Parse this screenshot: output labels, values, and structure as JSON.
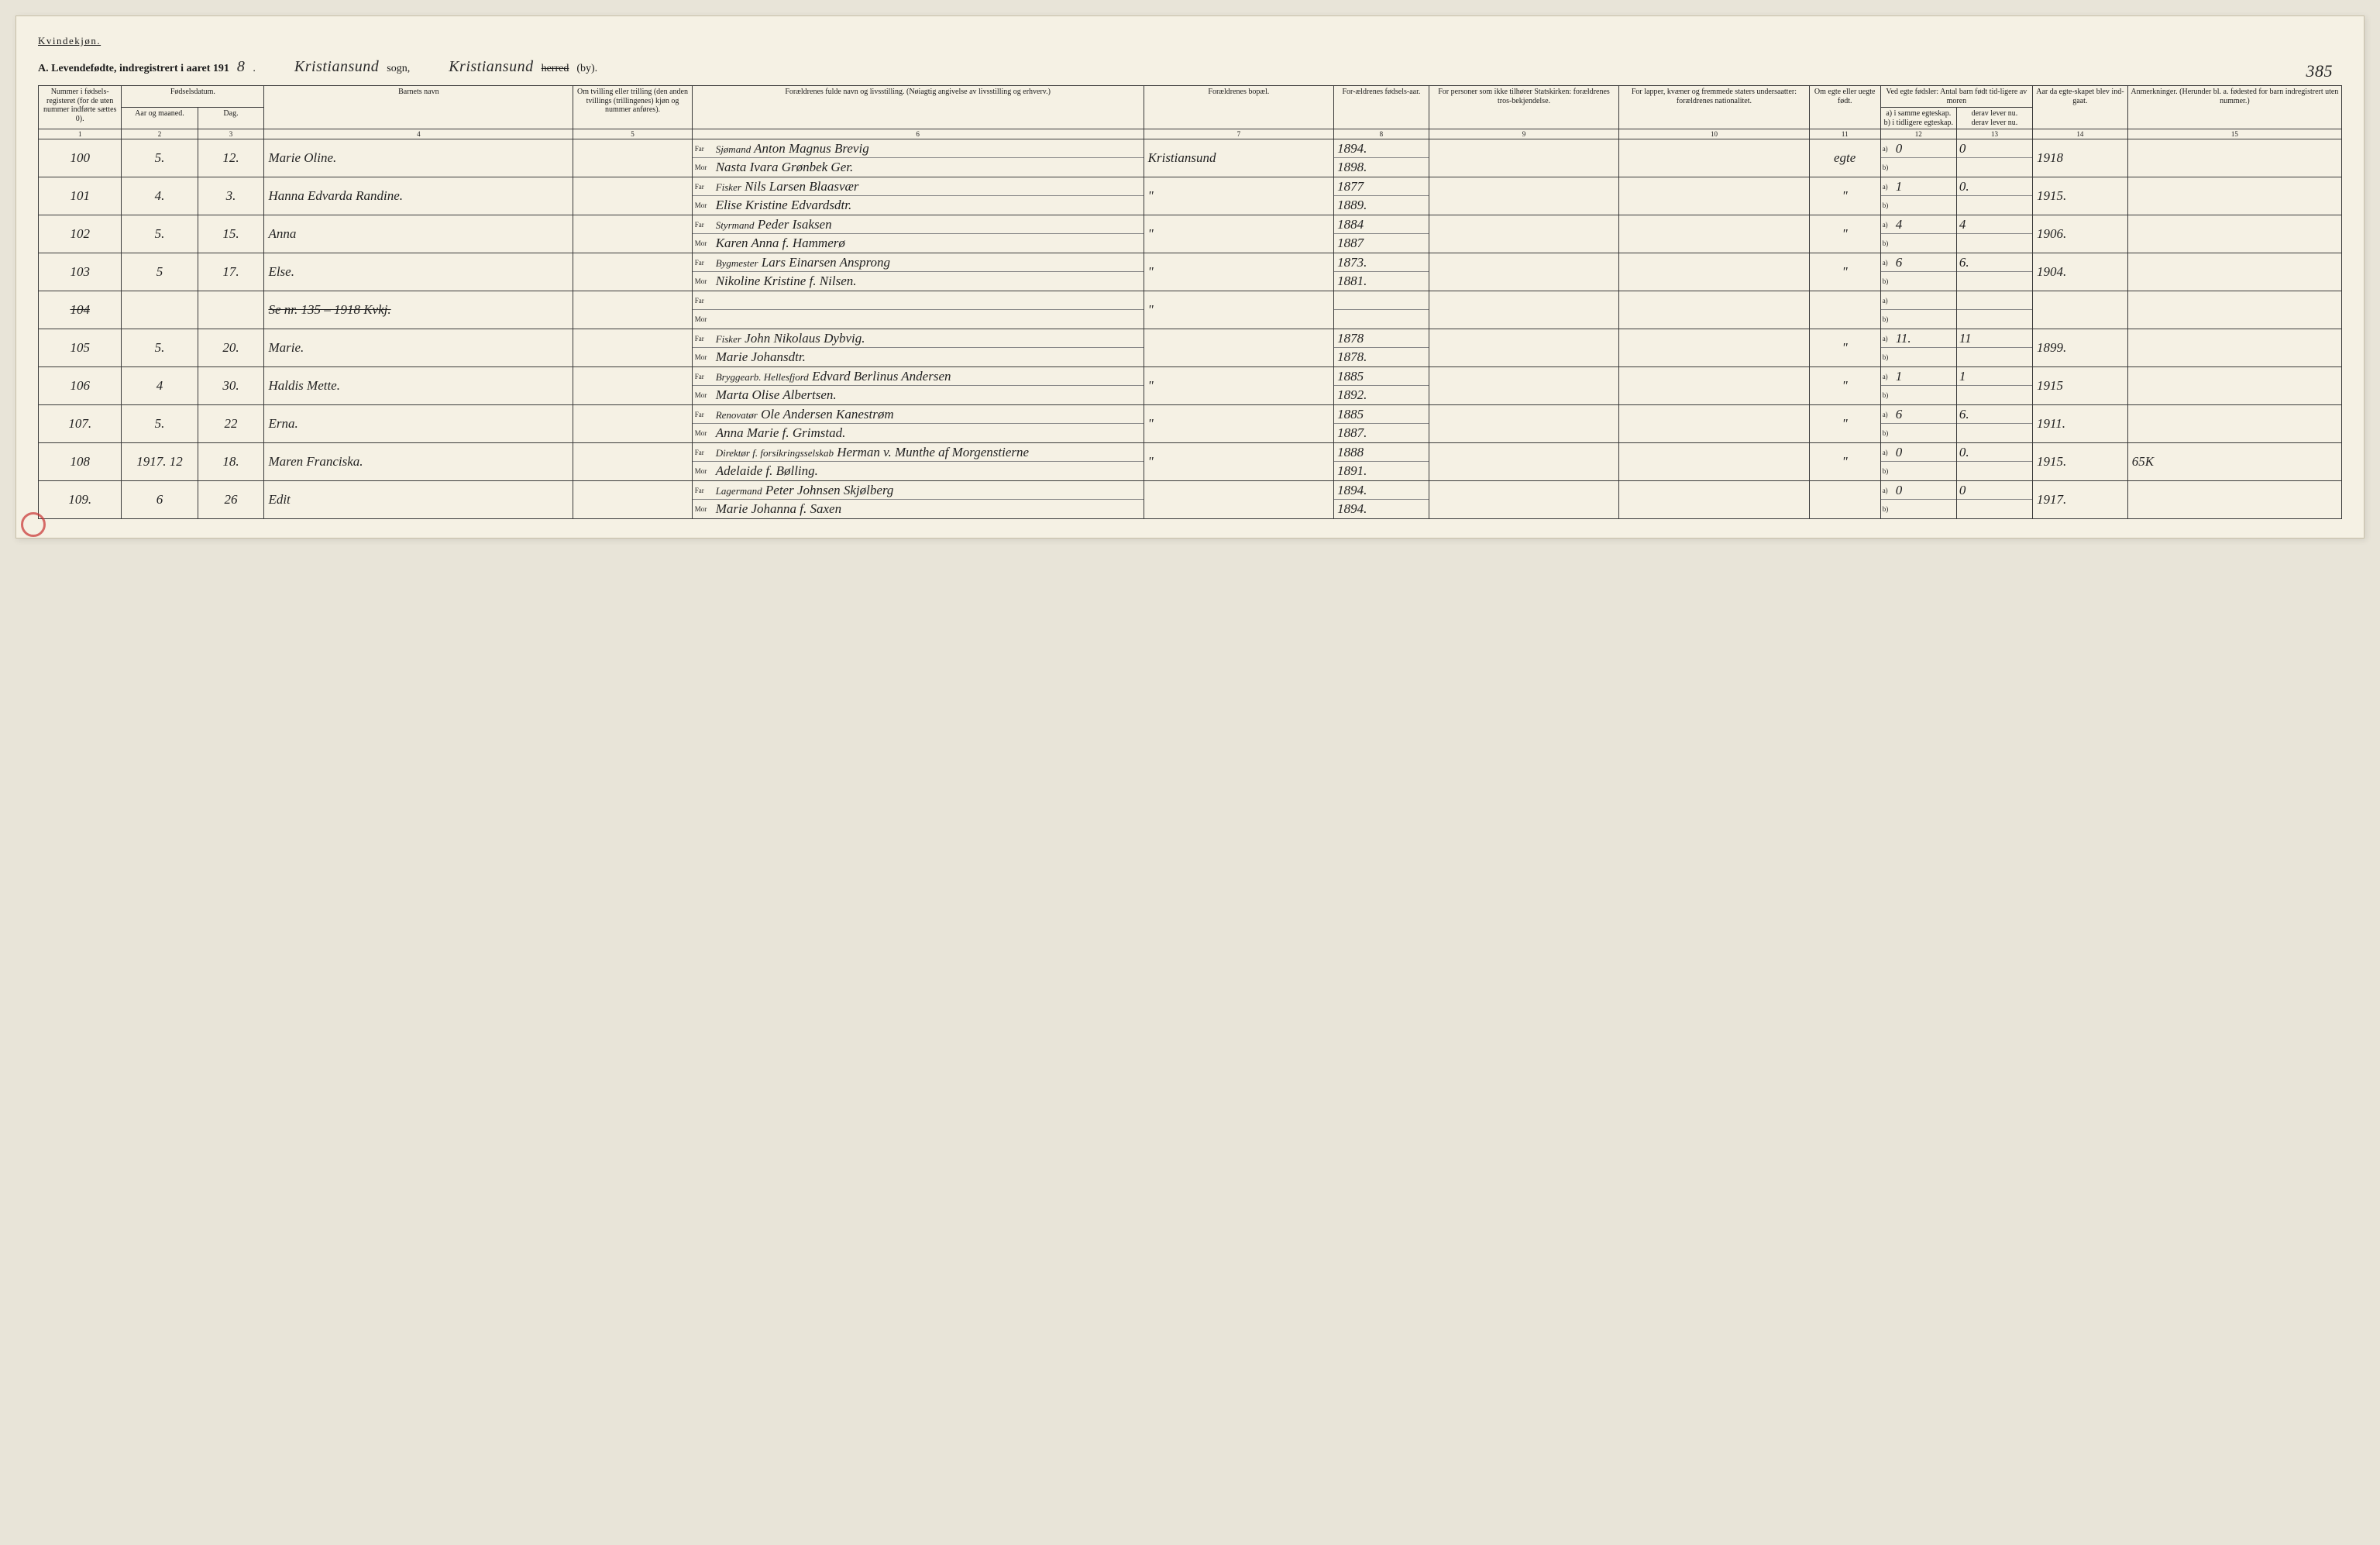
{
  "page": {
    "gender_label": "Kvindekjøn.",
    "title_prefix": "A. Levendefødte, indregistrert i aaret 191",
    "year_suffix": "8",
    "sogn_hand": "Kristiansund",
    "sogn_label": "sogn,",
    "herred_hand": "Kristiansund",
    "herred_label": "herred",
    "by_label": "(by).",
    "page_number": "385"
  },
  "headers": {
    "h1": "Nummer i fødsels-registeret (for de uten nummer indførte sættes 0).",
    "h2": "Fødselsdatum.",
    "h2a": "Aar og maaned.",
    "h2b": "Dag.",
    "h4": "Barnets navn",
    "h5": "Om tvilling eller trilling (den anden tvillings (trillingenes) kjøn og nummer anføres).",
    "h6": "Forældrenes fulde navn og livsstilling. (Nøiagtig angivelse av livsstilling og erhverv.)",
    "h7": "Forældrenes bopæl.",
    "h8": "For-ældrenes fødsels-aar.",
    "h9": "For personer som ikke tilhører Statskirken: forældrenes tros-bekjendelse.",
    "h10": "For lapper, kvæner og fremmede staters undersaatter: forældrenes nationalitet.",
    "h11": "Om egte eller uegte født.",
    "h12_top": "Ved egte fødsler: Antal barn født tid-ligere av moren",
    "h12a": "a) i samme egteskap.",
    "h12b": "b) i tidligere egteskap.",
    "h13a": "derav lever nu.",
    "h13b": "derav lever nu.",
    "h14": "Aar da egte-skapet blev ind-gaat.",
    "h15": "Anmerkninger. (Herunder bl. a. fødested for barn indregistrert uten nummer.)",
    "far": "Far",
    "mor": "Mor",
    "a_lbl": "a)",
    "b_lbl": "b)"
  },
  "colnums": [
    "1",
    "2",
    "3",
    "4",
    "5",
    "6",
    "7",
    "8",
    "9",
    "10",
    "11",
    "12",
    "13",
    "14",
    "15"
  ],
  "rows": [
    {
      "num": "100",
      "yr": "5.",
      "day": "12.",
      "name": "Marie Oline.",
      "twin": "",
      "far_occ": "Sjømand",
      "far": "Anton Magnus Brevig",
      "mor": "Nasta Ivara Grønbek Ger.",
      "bopael": "Kristiansund",
      "far_yr": "1894.",
      "mor_yr": "1898.",
      "rel": "",
      "nat": "",
      "egte": "egte",
      "a": "0",
      "b": "",
      "a2": "0",
      "m_yr": "1918",
      "anm": ""
    },
    {
      "num": "101",
      "yr": "4.",
      "day": "3.",
      "name": "Hanna Edvarda Randine.",
      "twin": "",
      "far_occ": "Fisker",
      "far": "Nils Larsen Blaasvær",
      "mor": "Elise Kristine Edvardsdtr.",
      "bopael": "\"",
      "far_yr": "1877",
      "mor_yr": "1889.",
      "rel": "",
      "nat": "",
      "egte": "\"",
      "a": "1",
      "b": "",
      "a2": "0.",
      "m_yr": "1915.",
      "anm": ""
    },
    {
      "num": "102",
      "yr": "5.",
      "day": "15.",
      "name": "Anna",
      "twin": "",
      "far_occ": "Styrmand",
      "far": "Peder Isaksen",
      "mor": "Karen Anna f. Hammerø",
      "bopael": "\"",
      "far_yr": "1884",
      "mor_yr": "1887",
      "rel": "",
      "nat": "",
      "egte": "\"",
      "a": "4",
      "b": "",
      "a2": "4",
      "m_yr": "1906.",
      "anm": ""
    },
    {
      "num": "103",
      "yr": "5",
      "day": "17.",
      "name": "Else.",
      "twin": "",
      "far_occ": "Bygmester",
      "far": "Lars Einarsen Ansprong",
      "mor": "Nikoline Kristine f. Nilsen.",
      "bopael": "\"",
      "far_yr": "1873.",
      "mor_yr": "1881.",
      "rel": "",
      "nat": "",
      "egte": "\"",
      "a": "6",
      "b": "",
      "a2": "6.",
      "m_yr": "1904.",
      "anm": ""
    },
    {
      "num": "104",
      "yr": "",
      "day": "",
      "name": "Se nr. 135 – 1918 Kvkj.",
      "twin": "",
      "far_occ": "",
      "far": "",
      "mor": "",
      "bopael": "\"",
      "far_yr": "",
      "mor_yr": "",
      "rel": "",
      "nat": "",
      "egte": "",
      "a": "",
      "b": "",
      "a2": "",
      "m_yr": "",
      "anm": "",
      "crossed": true
    },
    {
      "num": "105",
      "yr": "5.",
      "day": "20.",
      "name": "Marie.",
      "twin": "",
      "far_occ": "Fisker",
      "far": "John Nikolaus Dybvig.",
      "mor": "Marie Johansdtr.",
      "bopael": "",
      "far_yr": "1878",
      "mor_yr": "1878.",
      "rel": "",
      "nat": "",
      "egte": "\"",
      "a": "11.",
      "b": "",
      "a2": "11",
      "m_yr": "1899.",
      "anm": ""
    },
    {
      "num": "106",
      "yr": "4",
      "day": "30.",
      "name": "Haldis Mette.",
      "twin": "",
      "far_occ": "Bryggearb. Hellesfjord",
      "far": "Edvard Berlinus Andersen",
      "mor": "Marta Olise Albertsen.",
      "bopael": "\"",
      "far_yr": "1885",
      "mor_yr": "1892.",
      "rel": "",
      "nat": "",
      "egte": "\"",
      "a": "1",
      "b": "",
      "a2": "1",
      "m_yr": "1915",
      "anm": ""
    },
    {
      "num": "107.",
      "yr": "5.",
      "day": "22",
      "name": "Erna.",
      "twin": "",
      "far_occ": "Renovatør",
      "far": "Ole Andersen Kanestrøm",
      "mor": "Anna Marie f. Grimstad.",
      "bopael": "\"",
      "far_yr": "1885",
      "mor_yr": "1887.",
      "rel": "",
      "nat": "",
      "egte": "\"",
      "a": "6",
      "b": "",
      "a2": "6.",
      "m_yr": "1911.",
      "anm": ""
    },
    {
      "num": "108",
      "yr": "1917. 12",
      "day": "18.",
      "name": "Maren Franciska.",
      "twin": "",
      "far_occ": "Direktør f. forsikringsselskab",
      "far": "Herman v. Munthe af Morgenstierne",
      "mor": "Adelaide f. Bølling.",
      "bopael": "\"",
      "far_yr": "1888",
      "mor_yr": "1891.",
      "rel": "",
      "nat": "",
      "egte": "\"",
      "a": "0",
      "b": "",
      "a2": "0.",
      "m_yr": "1915.",
      "anm": "65K"
    },
    {
      "num": "109.",
      "yr": "6",
      "day": "26",
      "name": "Edit",
      "twin": "",
      "far_occ": "Lagermand",
      "far": "Peter Johnsen Skjølberg",
      "mor": "Marie Johanna f. Saxen",
      "bopael": "",
      "far_yr": "1894.",
      "mor_yr": "1894.",
      "rel": "",
      "nat": "",
      "egte": "",
      "a": "0",
      "b": "",
      "a2": "0",
      "m_yr": "1917.",
      "anm": ""
    }
  ]
}
